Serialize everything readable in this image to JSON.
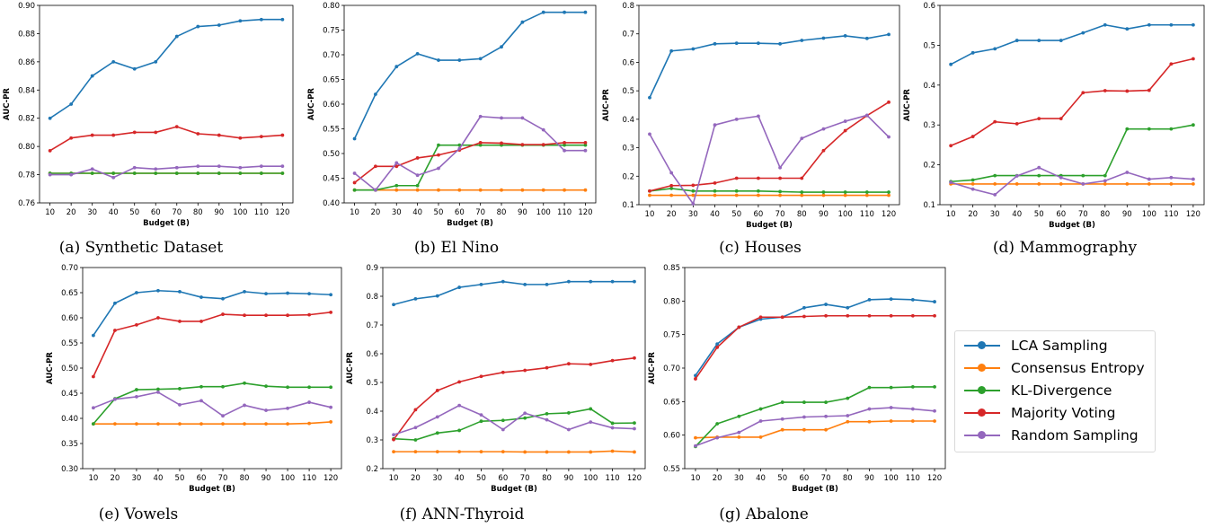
{
  "legend": [
    {
      "name": "LCA Sampling",
      "color": "#1f77b4"
    },
    {
      "name": "Consensus Entropy",
      "color": "#ff7f0e"
    },
    {
      "name": "KL-Divergence",
      "color": "#2ca02c"
    },
    {
      "name": "Majority Voting",
      "color": "#d62728"
    },
    {
      "name": "Random Sampling",
      "color": "#9467bd"
    }
  ],
  "chart_data": [
    {
      "type": "line",
      "caption": "(a) Synthetic Dataset",
      "xlabel": "Budget (B)",
      "ylabel": "AUC-PR",
      "x": [
        10,
        20,
        30,
        40,
        50,
        60,
        70,
        80,
        90,
        100,
        110,
        120
      ],
      "ylim": [
        0.76,
        0.9
      ],
      "yticks": [
        "0.76",
        "0.78",
        "0.80",
        "0.82",
        "0.84",
        "0.86",
        "0.88",
        "0.90"
      ],
      "series": [
        {
          "name": "LCA Sampling",
          "values": [
            0.82,
            0.83,
            0.85,
            0.86,
            0.855,
            0.86,
            0.878,
            0.885,
            0.886,
            0.889,
            0.89,
            0.89
          ]
        },
        {
          "name": "Consensus Entropy",
          "values": [
            0.781,
            0.781,
            0.781,
            0.781,
            0.781,
            0.781,
            0.781,
            0.781,
            0.781,
            0.781,
            0.781,
            0.781
          ]
        },
        {
          "name": "KL-Divergence",
          "values": [
            0.781,
            0.781,
            0.781,
            0.781,
            0.781,
            0.781,
            0.781,
            0.781,
            0.781,
            0.781,
            0.781,
            0.781
          ]
        },
        {
          "name": "Majority Voting",
          "values": [
            0.797,
            0.806,
            0.808,
            0.808,
            0.81,
            0.81,
            0.814,
            0.809,
            0.808,
            0.806,
            0.807,
            0.808
          ]
        },
        {
          "name": "Random Sampling",
          "values": [
            0.78,
            0.78,
            0.784,
            0.778,
            0.785,
            0.784,
            0.785,
            0.786,
            0.786,
            0.785,
            0.786,
            0.786
          ]
        }
      ]
    },
    {
      "type": "line",
      "caption": "(b) El Nino",
      "xlabel": "Budget (B)",
      "ylabel": "AUC-PR",
      "x": [
        10,
        20,
        30,
        40,
        50,
        60,
        70,
        80,
        90,
        100,
        110,
        120
      ],
      "ylim": [
        0.4,
        0.8
      ],
      "yticks": [
        "0.40",
        "0.45",
        "0.50",
        "0.55",
        "0.60",
        "0.65",
        "0.70",
        "0.75",
        "0.80"
      ],
      "series": [
        {
          "name": "LCA Sampling",
          "values": [
            0.53,
            0.62,
            0.676,
            0.702,
            0.689,
            0.689,
            0.692,
            0.716,
            0.766,
            0.786,
            0.786,
            0.786
          ]
        },
        {
          "name": "Consensus Entropy",
          "values": [
            0.426,
            0.426,
            0.426,
            0.426,
            0.426,
            0.426,
            0.426,
            0.426,
            0.426,
            0.426,
            0.426,
            0.426
          ]
        },
        {
          "name": "KL-Divergence",
          "values": [
            0.426,
            0.426,
            0.435,
            0.435,
            0.517,
            0.517,
            0.517,
            0.517,
            0.517,
            0.517,
            0.517,
            0.517
          ]
        },
        {
          "name": "Majority Voting",
          "values": [
            0.441,
            0.474,
            0.474,
            0.491,
            0.497,
            0.507,
            0.522,
            0.521,
            0.518,
            0.518,
            0.522,
            0.522
          ]
        },
        {
          "name": "Random Sampling",
          "values": [
            0.46,
            0.426,
            0.481,
            0.456,
            0.47,
            0.51,
            0.575,
            0.572,
            0.572,
            0.548,
            0.506,
            0.506
          ]
        }
      ]
    },
    {
      "type": "line",
      "caption": "(c) Houses",
      "xlabel": "Budget (B)",
      "ylabel": "AUC-PR",
      "x": [
        10,
        20,
        30,
        40,
        50,
        60,
        70,
        80,
        90,
        100,
        110,
        120
      ],
      "ylim": [
        0.1,
        0.8
      ],
      "yticks": [
        "0.1",
        "0.2",
        "0.3",
        "0.4",
        "0.5",
        "0.6",
        "0.7",
        "0.8"
      ],
      "series": [
        {
          "name": "LCA Sampling",
          "values": [
            0.476,
            0.64,
            0.647,
            0.665,
            0.667,
            0.667,
            0.665,
            0.677,
            0.685,
            0.693,
            0.684,
            0.698
          ]
        },
        {
          "name": "Consensus Entropy",
          "values": [
            0.133,
            0.133,
            0.133,
            0.133,
            0.133,
            0.133,
            0.133,
            0.133,
            0.133,
            0.133,
            0.133,
            0.133
          ]
        },
        {
          "name": "KL-Divergence",
          "values": [
            0.148,
            0.157,
            0.148,
            0.148,
            0.148,
            0.148,
            0.146,
            0.144,
            0.144,
            0.144,
            0.144,
            0.144
          ]
        },
        {
          "name": "Majority Voting",
          "values": [
            0.148,
            0.167,
            0.168,
            0.176,
            0.193,
            0.193,
            0.193,
            0.193,
            0.29,
            0.36,
            0.413,
            0.46
          ]
        },
        {
          "name": "Random Sampling",
          "values": [
            0.348,
            0.212,
            0.103,
            0.38,
            0.4,
            0.411,
            0.23,
            0.333,
            0.366,
            0.393,
            0.414,
            0.338
          ]
        }
      ]
    },
    {
      "type": "line",
      "caption": "(d) Mammography",
      "xlabel": "Budget (B)",
      "ylabel": "AUC-PR",
      "x": [
        10,
        20,
        30,
        40,
        50,
        60,
        70,
        80,
        90,
        100,
        110,
        120
      ],
      "ylim": [
        0.1,
        0.6
      ],
      "yticks": [
        "0.1",
        "0.2",
        "0.3",
        "0.4",
        "0.5",
        "0.6"
      ],
      "series": [
        {
          "name": "LCA Sampling",
          "values": [
            0.452,
            0.481,
            0.491,
            0.512,
            0.512,
            0.512,
            0.531,
            0.551,
            0.541,
            0.551,
            0.551,
            0.551
          ]
        },
        {
          "name": "Consensus Entropy",
          "values": [
            0.152,
            0.152,
            0.152,
            0.152,
            0.152,
            0.152,
            0.152,
            0.152,
            0.152,
            0.152,
            0.152,
            0.152
          ]
        },
        {
          "name": "KL-Divergence",
          "values": [
            0.158,
            0.162,
            0.173,
            0.173,
            0.173,
            0.173,
            0.173,
            0.173,
            0.29,
            0.29,
            0.29,
            0.3
          ]
        },
        {
          "name": "Majority Voting",
          "values": [
            0.248,
            0.271,
            0.308,
            0.303,
            0.316,
            0.316,
            0.381,
            0.386,
            0.385,
            0.387,
            0.453,
            0.466
          ]
        },
        {
          "name": "Random Sampling",
          "values": [
            0.156,
            0.139,
            0.125,
            0.172,
            0.193,
            0.168,
            0.152,
            0.16,
            0.181,
            0.164,
            0.168,
            0.164
          ]
        }
      ]
    },
    {
      "type": "line",
      "caption": "(e) Vowels",
      "xlabel": "Budget (B)",
      "ylabel": "AUC-PR",
      "x": [
        10,
        20,
        30,
        40,
        50,
        60,
        70,
        80,
        90,
        100,
        110,
        120
      ],
      "ylim": [
        0.3,
        0.7
      ],
      "yticks": [
        "0.30",
        "0.35",
        "0.40",
        "0.45",
        "0.50",
        "0.55",
        "0.60",
        "0.65",
        "0.70"
      ],
      "series": [
        {
          "name": "LCA Sampling",
          "values": [
            0.565,
            0.629,
            0.65,
            0.654,
            0.652,
            0.641,
            0.638,
            0.652,
            0.648,
            0.649,
            0.648,
            0.646
          ]
        },
        {
          "name": "Consensus Entropy",
          "values": [
            0.389,
            0.389,
            0.389,
            0.389,
            0.389,
            0.389,
            0.389,
            0.389,
            0.389,
            0.389,
            0.39,
            0.393
          ]
        },
        {
          "name": "KL-Divergence",
          "values": [
            0.389,
            0.439,
            0.457,
            0.458,
            0.459,
            0.463,
            0.463,
            0.47,
            0.464,
            0.462,
            0.462,
            0.462
          ]
        },
        {
          "name": "Majority Voting",
          "values": [
            0.483,
            0.575,
            0.586,
            0.6,
            0.593,
            0.593,
            0.607,
            0.605,
            0.605,
            0.605,
            0.606,
            0.611
          ]
        },
        {
          "name": "Random Sampling",
          "values": [
            0.421,
            0.438,
            0.443,
            0.452,
            0.427,
            0.435,
            0.405,
            0.426,
            0.416,
            0.42,
            0.432,
            0.422
          ]
        }
      ]
    },
    {
      "type": "line",
      "caption": "(f) ANN-Thyroid",
      "xlabel": "Budget (B)",
      "ylabel": "AUC-PR",
      "x": [
        10,
        20,
        30,
        40,
        50,
        60,
        70,
        80,
        90,
        100,
        110,
        120
      ],
      "ylim": [
        0.2,
        0.9
      ],
      "yticks": [
        "0.2",
        "0.3",
        "0.4",
        "0.5",
        "0.6",
        "0.7",
        "0.8",
        "0.9"
      ],
      "series": [
        {
          "name": "LCA Sampling",
          "values": [
            0.771,
            0.791,
            0.801,
            0.831,
            0.841,
            0.851,
            0.841,
            0.841,
            0.851,
            0.851,
            0.851,
            0.851
          ]
        },
        {
          "name": "Consensus Entropy",
          "values": [
            0.259,
            0.259,
            0.259,
            0.259,
            0.259,
            0.259,
            0.258,
            0.258,
            0.258,
            0.258,
            0.261,
            0.258
          ]
        },
        {
          "name": "KL-Divergence",
          "values": [
            0.304,
            0.3,
            0.324,
            0.333,
            0.365,
            0.368,
            0.376,
            0.391,
            0.394,
            0.408,
            0.358,
            0.359
          ]
        },
        {
          "name": "Majority Voting",
          "values": [
            0.301,
            0.405,
            0.472,
            0.502,
            0.521,
            0.535,
            0.542,
            0.551,
            0.565,
            0.563,
            0.576,
            0.585
          ]
        },
        {
          "name": "Random Sampling",
          "values": [
            0.318,
            0.343,
            0.38,
            0.42,
            0.387,
            0.336,
            0.393,
            0.37,
            0.336,
            0.362,
            0.342,
            0.339
          ]
        }
      ]
    },
    {
      "type": "line",
      "caption": "(g) Abalone",
      "xlabel": "Budget (B)",
      "ylabel": "AUC-PR",
      "x": [
        10,
        20,
        30,
        40,
        50,
        60,
        70,
        80,
        90,
        100,
        110,
        120
      ],
      "ylim": [
        0.55,
        0.85
      ],
      "yticks": [
        "0.55",
        "0.60",
        "0.65",
        "0.70",
        "0.75",
        "0.80",
        "0.85"
      ],
      "series": [
        {
          "name": "LCA Sampling",
          "values": [
            0.689,
            0.736,
            0.761,
            0.773,
            0.776,
            0.79,
            0.795,
            0.79,
            0.802,
            0.803,
            0.802,
            0.799
          ]
        },
        {
          "name": "Consensus Entropy",
          "values": [
            0.596,
            0.597,
            0.597,
            0.597,
            0.608,
            0.608,
            0.608,
            0.62,
            0.62,
            0.621,
            0.621,
            0.621
          ]
        },
        {
          "name": "KL-Divergence",
          "values": [
            0.583,
            0.617,
            0.628,
            0.639,
            0.649,
            0.649,
            0.649,
            0.655,
            0.671,
            0.671,
            0.672,
            0.672
          ]
        },
        {
          "name": "Majority Voting",
          "values": [
            0.684,
            0.731,
            0.761,
            0.776,
            0.776,
            0.777,
            0.778,
            0.778,
            0.778,
            0.778,
            0.778,
            0.778
          ]
        },
        {
          "name": "Random Sampling",
          "values": [
            0.584,
            0.596,
            0.604,
            0.621,
            0.624,
            0.627,
            0.628,
            0.629,
            0.639,
            0.641,
            0.639,
            0.636
          ]
        }
      ]
    }
  ]
}
